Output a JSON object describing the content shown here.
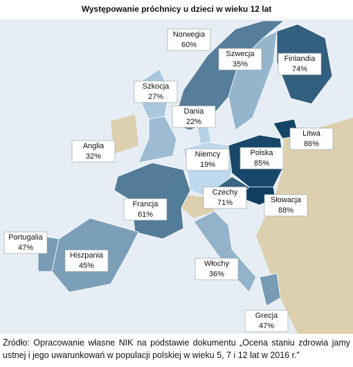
{
  "title": "Występowanie  próchnicy u dzieci w wieku 12 lat",
  "regions": [
    {
      "name": "Norwegia",
      "value": 60,
      "label": "60%"
    },
    {
      "name": "Szwecja",
      "value": 35,
      "label": "35%"
    },
    {
      "name": "Finlandia",
      "value": 74,
      "label": "74%"
    },
    {
      "name": "Szkocja",
      "value": 27,
      "label": "27%"
    },
    {
      "name": "Dania",
      "value": 22,
      "label": "22%"
    },
    {
      "name": "Anglia",
      "value": 32,
      "label": "32%"
    },
    {
      "name": "Niemcy",
      "value": 19,
      "label": "19%"
    },
    {
      "name": "Polska",
      "value": 85,
      "label": "85%"
    },
    {
      "name": "Litwa",
      "value": 86,
      "label": "86%"
    },
    {
      "name": "Czechy",
      "value": 71,
      "label": "71%"
    },
    {
      "name": "Słowacja",
      "value": 88,
      "label": "88%"
    },
    {
      "name": "Francja",
      "value": 61,
      "label": "61%"
    },
    {
      "name": "Portugalia",
      "value": 47,
      "label": "47%"
    },
    {
      "name": "Hiszpania",
      "value": 45,
      "label": "45%"
    },
    {
      "name": "Włochy",
      "value": 36,
      "label": "36%"
    },
    {
      "name": "Grecja",
      "value": 47,
      "label": "47%"
    }
  ],
  "source": "Źródło: Opracowanie własne NIK na podstawie dokumentu „Ocena staniu zdrowia jamy ustnej i jego uwarunkowań w populacji polskiej  w wieku 5, 7 i 12 lat w 2016 r.”"
}
